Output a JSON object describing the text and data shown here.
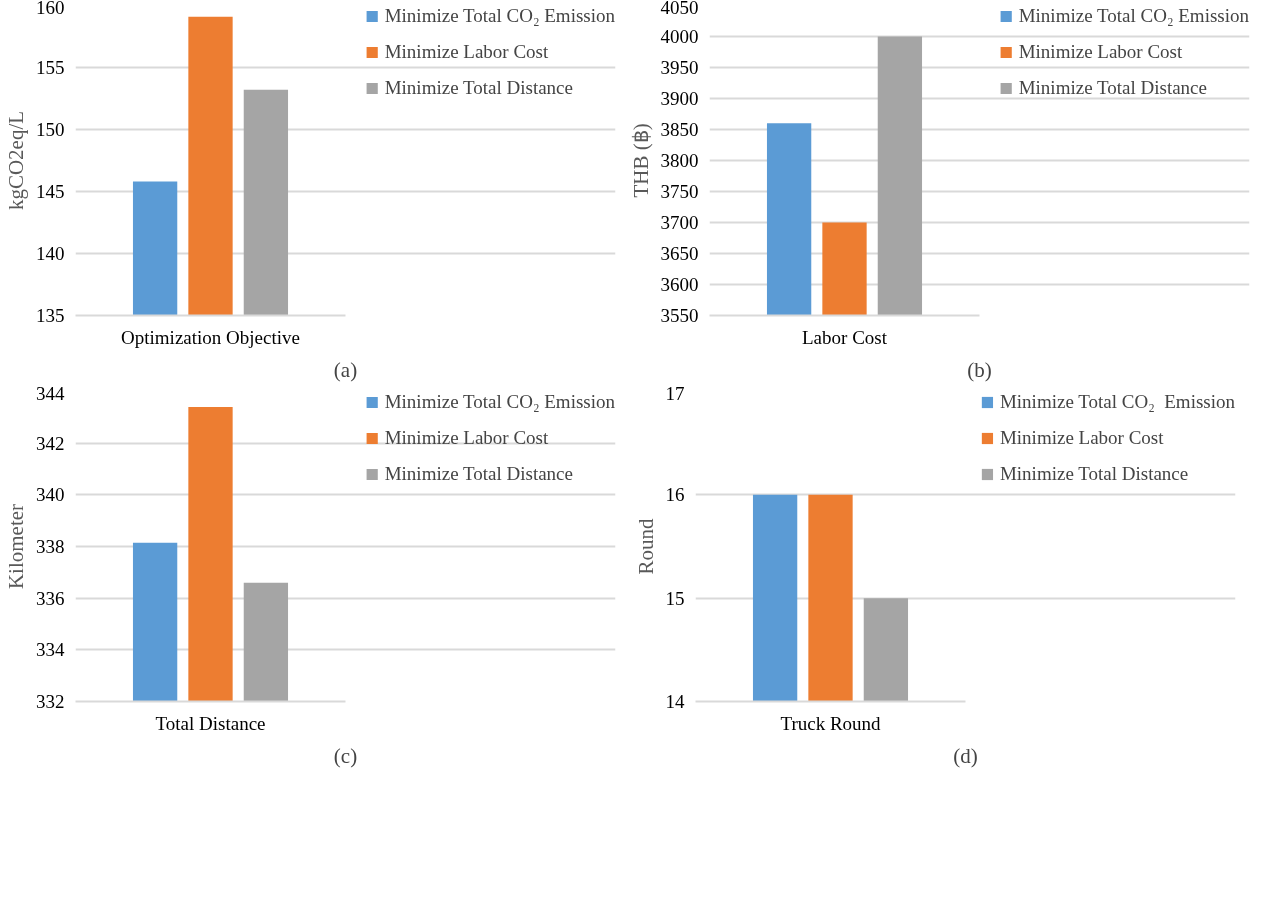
{
  "chart_data": [
    {
      "type": "bar",
      "title": "(a)",
      "ylabel": "kgCO2eq/L",
      "categories": [
        "Optimization Objective"
      ],
      "series": [
        {
          "name": "Minimize Total CO₂ Emission",
          "color": "#5b9bd5",
          "values": [
            145.8
          ]
        },
        {
          "name": "Minimize Labor Cost",
          "color": "#ed7d31",
          "values": [
            159.1
          ]
        },
        {
          "name": "Minimize Total Distance",
          "color": "#a5a5a5",
          "values": [
            153.2
          ]
        }
      ],
      "ylim": [
        135,
        160
      ],
      "yticks": [
        135,
        140,
        145,
        150,
        155,
        160
      ],
      "grid": "y",
      "legend": "right"
    },
    {
      "type": "bar",
      "title": "(b)",
      "ylabel": "THB (฿)",
      "categories": [
        "Labor Cost"
      ],
      "series": [
        {
          "name": "Minimize Total CO₂ Emission",
          "color": "#5b9bd5",
          "values": [
            3860
          ]
        },
        {
          "name": "Minimize Labor Cost",
          "color": "#ed7d31",
          "values": [
            3700
          ]
        },
        {
          "name": "Minimize Total Distance",
          "color": "#a5a5a5",
          "values": [
            4000
          ]
        }
      ],
      "ylim": [
        3550,
        4050
      ],
      "yticks": [
        3550,
        3600,
        3650,
        3700,
        3750,
        3800,
        3850,
        3900,
        3950,
        4000,
        4050
      ],
      "grid": "y",
      "legend": "right"
    },
    {
      "type": "bar",
      "title": "(c)",
      "ylabel": "Kilometer",
      "categories": [
        "Total Distance"
      ],
      "series": [
        {
          "name": "Minimize Total CO₂ Emission",
          "color": "#5b9bd5",
          "values": [
            338.15
          ]
        },
        {
          "name": "Minimize Labor Cost",
          "color": "#ed7d31",
          "values": [
            343.4
          ]
        },
        {
          "name": "Minimize Total Distance",
          "color": "#a5a5a5",
          "values": [
            336.6
          ]
        }
      ],
      "ylim": [
        332,
        344
      ],
      "yticks": [
        332,
        334,
        336,
        338,
        340,
        342,
        344
      ],
      "grid": "y",
      "legend": "right"
    },
    {
      "type": "bar",
      "title": "(d)",
      "ylabel": "Round",
      "categories": [
        "Truck Round"
      ],
      "series": [
        {
          "name": "Minimize Total CO₂  Emission",
          "color": "#5b9bd5",
          "values": [
            16
          ]
        },
        {
          "name": "Minimize Labor Cost",
          "color": "#ed7d31",
          "values": [
            16
          ]
        },
        {
          "name": "Minimize Total Distance",
          "color": "#a5a5a5",
          "values": [
            15
          ]
        }
      ],
      "ylim": [
        14,
        17
      ],
      "yticks": [
        14,
        15,
        16,
        17
      ],
      "grid": "y",
      "legend": "right"
    }
  ]
}
